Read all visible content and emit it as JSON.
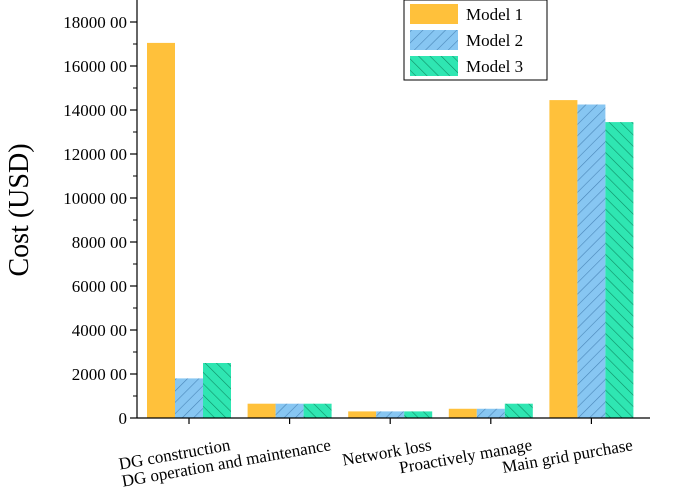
{
  "chart_data": {
    "type": "bar",
    "title": "",
    "xlabel": "",
    "ylabel": "Cost (USD)",
    "ylim": [
      0,
      1900000
    ],
    "yticks": [
      0,
      200000,
      400000,
      600000,
      800000,
      1000000,
      1200000,
      1400000,
      1600000,
      1800000
    ],
    "ytick_labels": [
      "0",
      "2000 00",
      "4000 00",
      "6000 00",
      "8000 00",
      "10000 00",
      "12000 00",
      "14000 00",
      "16000 00",
      "18000 00"
    ],
    "categories": [
      "DG construction",
      "DG operation and maintenance",
      "Network loss",
      "Proactively manage",
      "Main grid purchase"
    ],
    "series": [
      {
        "name": "Model 1",
        "values": [
          1705000,
          65000,
          30000,
          42000,
          1445000
        ]
      },
      {
        "name": "Model 2",
        "values": [
          180000,
          65000,
          30000,
          42000,
          1425000
        ]
      },
      {
        "name": "Model 3",
        "values": [
          250000,
          65000,
          30000,
          65000,
          1345000
        ]
      }
    ],
    "legend_position": "top-right",
    "grid": false,
    "colors": [
      "#FFC13B",
      "#87C6F2",
      "#2FE6B2"
    ]
  }
}
